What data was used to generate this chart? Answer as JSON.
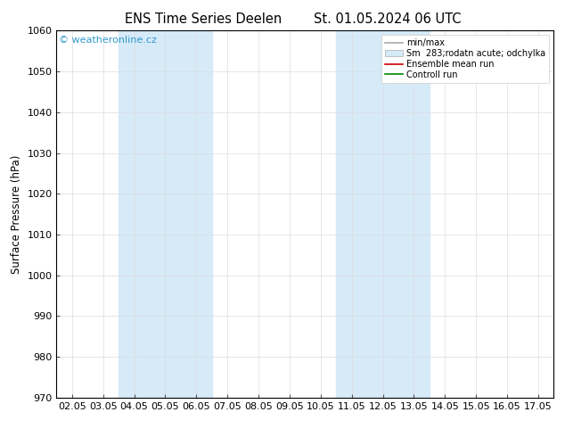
{
  "title": "ENS Time Series Deelen",
  "title2": "St. 01.05.2024 06 UTC",
  "ylabel": "Surface Pressure (hPa)",
  "ylim": [
    970,
    1060
  ],
  "yticks": [
    970,
    980,
    990,
    1000,
    1010,
    1020,
    1030,
    1040,
    1050,
    1060
  ],
  "xtick_labels": [
    "02.05",
    "03.05",
    "04.05",
    "05.05",
    "06.05",
    "07.05",
    "08.05",
    "09.05",
    "10.05",
    "11.05",
    "12.05",
    "13.05",
    "14.05",
    "15.05",
    "16.05",
    "17.05"
  ],
  "shaded_bands": [
    {
      "xstart": 2,
      "xend": 4
    },
    {
      "xstart": 9,
      "xend": 11
    }
  ],
  "shade_color": "#d6eaf8",
  "watermark": "© weatheronline.cz",
  "legend_entries": [
    {
      "label": "min/max",
      "color": "#aaaaaa",
      "style": "line"
    },
    {
      "label": "Sm  283;rodatn acute; odchylka",
      "color": "#d6eaf8",
      "style": "fill"
    },
    {
      "label": "Ensemble mean run",
      "color": "#cc0000",
      "style": "line"
    },
    {
      "label": "Controll run",
      "color": "#008800",
      "style": "line"
    }
  ],
  "bg_color": "#ffffff",
  "plot_bg_color": "#ffffff",
  "grid_color": "#dddddd",
  "title_fontsize": 10.5,
  "axis_fontsize": 8.5,
  "tick_fontsize": 8,
  "watermark_color": "#3399cc"
}
